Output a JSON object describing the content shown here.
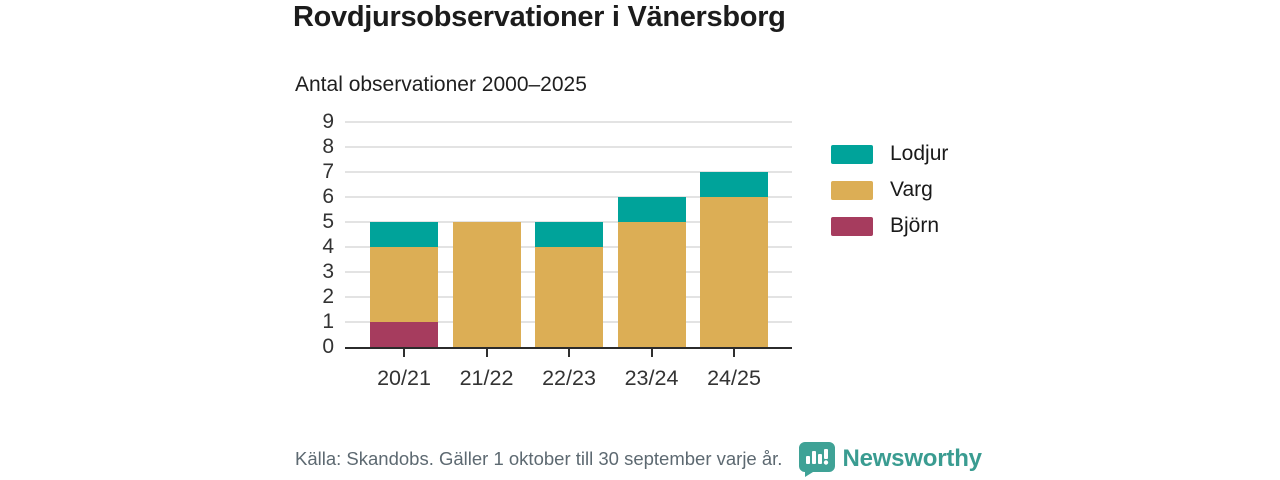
{
  "header": {
    "title": "Rovdjursobservationer i Vänersborg",
    "subtitle": "Antal observationer 2000–2025"
  },
  "chart_data": {
    "type": "bar",
    "stacked": true,
    "title": "Rovdjursobservationer i Vänersborg",
    "subtitle": "Antal observationer 2000–2025",
    "categories": [
      "20/21",
      "21/22",
      "22/23",
      "23/24",
      "24/25"
    ],
    "series": [
      {
        "name": "Björn",
        "color": "#a63c5e",
        "values": [
          1,
          0,
          0,
          0,
          0
        ]
      },
      {
        "name": "Varg",
        "color": "#dcae55",
        "values": [
          3,
          5,
          4,
          5,
          6
        ]
      },
      {
        "name": "Lodjur",
        "color": "#00a39a",
        "values": [
          1,
          0,
          1,
          1,
          1
        ]
      }
    ],
    "totals": [
      5,
      5,
      5,
      6,
      7
    ],
    "xlabel": "",
    "ylabel": "",
    "ylim": [
      0,
      9
    ],
    "yticks": [
      0,
      1,
      2,
      3,
      4,
      5,
      6,
      7,
      8,
      9
    ],
    "grid": true,
    "legend_position": "right",
    "legend_order_top_to_bottom": [
      "Lodjur",
      "Varg",
      "Björn"
    ]
  },
  "footer": {
    "source": "Källa: Skandobs. Gäller 1 oktober till 30 september varje år.",
    "brand": "Newsworthy",
    "brand_color": "#3a9c91",
    "logo_color": "#3fa296"
  }
}
